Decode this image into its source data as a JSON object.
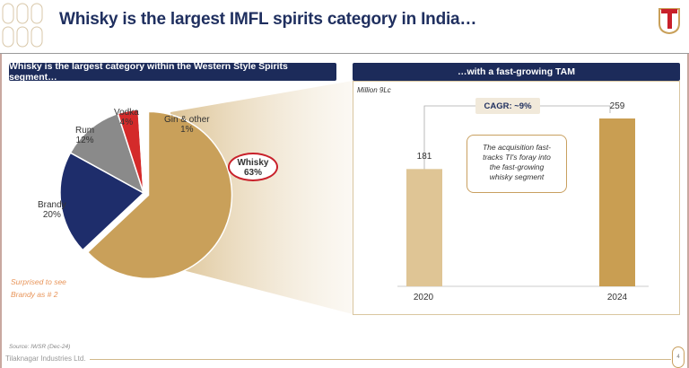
{
  "header": {
    "title": "Whisky is the largest IMFL spirits category in India…",
    "logo_text": "T"
  },
  "left_panel": {
    "title": "Whisky is the largest category within the Western Style Spirits segment…",
    "note_line1": "Surprised to see",
    "note_line2": "Brandy as # 2"
  },
  "right_panel": {
    "title": "…with a fast-growing TAM",
    "unit": "Million 9Lc",
    "cagr": "CAGR: ~9%",
    "callout": [
      "The acquisition fast-",
      "tracks TI's foray into",
      "the fast-growing",
      "whisky segment"
    ]
  },
  "chart_data": [
    {
      "type": "pie",
      "categories": [
        "Whisky",
        "Brandy",
        "Rum",
        "Vodka",
        "Gin & other"
      ],
      "values": [
        63,
        20,
        12,
        4,
        1
      ],
      "labels": [
        "63%",
        "20%",
        "12%",
        "4%",
        "1%"
      ],
      "colors": [
        "#c9a05a",
        "#1e2d6b",
        "#8a8a8a",
        "#d42a2a",
        "#ffffff"
      ]
    },
    {
      "type": "bar",
      "categories": [
        "2020",
        "2024"
      ],
      "values": [
        181,
        259
      ],
      "data_labels": [
        "181",
        "259"
      ],
      "ylabel": "Million 9Lc",
      "colors": [
        "#dfc595",
        "#c99e52"
      ]
    }
  ],
  "footer": {
    "source": "Source:  IWSR (Dec-24)",
    "company": "Tilaknagar Industries Ltd.",
    "page": "4"
  }
}
